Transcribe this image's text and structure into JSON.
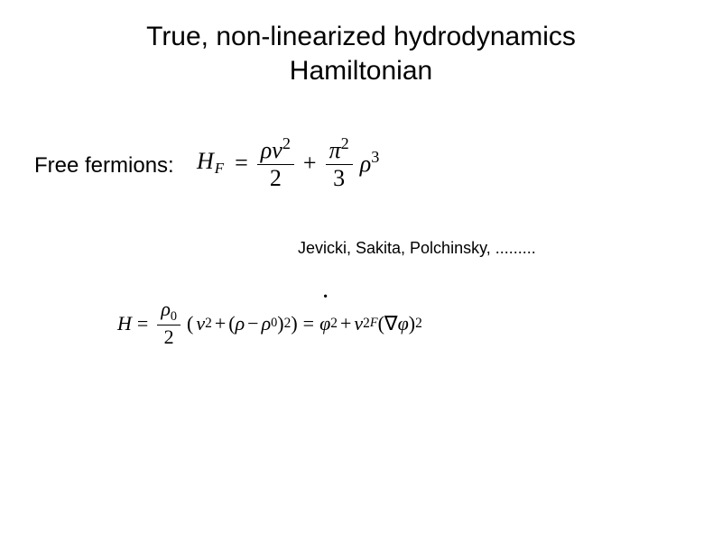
{
  "colors": {
    "background": "#ffffff",
    "text": "#000000"
  },
  "typography": {
    "body_font": "Arial",
    "math_font": "Times New Roman",
    "title_fontsize_pt": 30,
    "label_fontsize_pt": 24,
    "eq1_fontsize_pt": 26,
    "eq2_fontsize_pt": 22,
    "citation_fontsize_pt": 18
  },
  "title": {
    "line1": "True,  non-linearized hydrodynamics",
    "line2": "Hamiltonian"
  },
  "free_fermions": {
    "label": "Free fermions:",
    "equation": {
      "lhs_var": "H",
      "lhs_sub": "F",
      "term1": {
        "num": "ρv",
        "num_sup": "2",
        "den": "2"
      },
      "plus": "+",
      "term2": {
        "num": "π",
        "num_sup": "2",
        "den": "3"
      },
      "trailing": {
        "base": "ρ",
        "sup": "3"
      }
    }
  },
  "citation": "Jevicki,  Sakita, Polchinsky, .........",
  "hamiltonian_eq": {
    "lhs": "H",
    "eq": "=",
    "frac": {
      "num_base": "ρ",
      "num_sub": "0",
      "den": "2"
    },
    "paren_open": "(",
    "v2_base": "v",
    "v2_sup": "2",
    "plus1": "+",
    "inner_open": "(",
    "rho": "ρ",
    "minus": "−",
    "rho0_base": "ρ",
    "rho0_sub": "0",
    "inner_close": ")",
    "inner_sup": "2",
    "paren_close": ")",
    "eq2": "=",
    "phidot_base": "φ",
    "phidot_sup": "2",
    "plus2": "+",
    "vF_base": "v",
    "vF_sup": "2",
    "vF_sub": "F",
    "grad_open": "(",
    "nabla": "∇",
    "phi": "φ",
    "grad_close": ")",
    "grad_sup": "2"
  }
}
